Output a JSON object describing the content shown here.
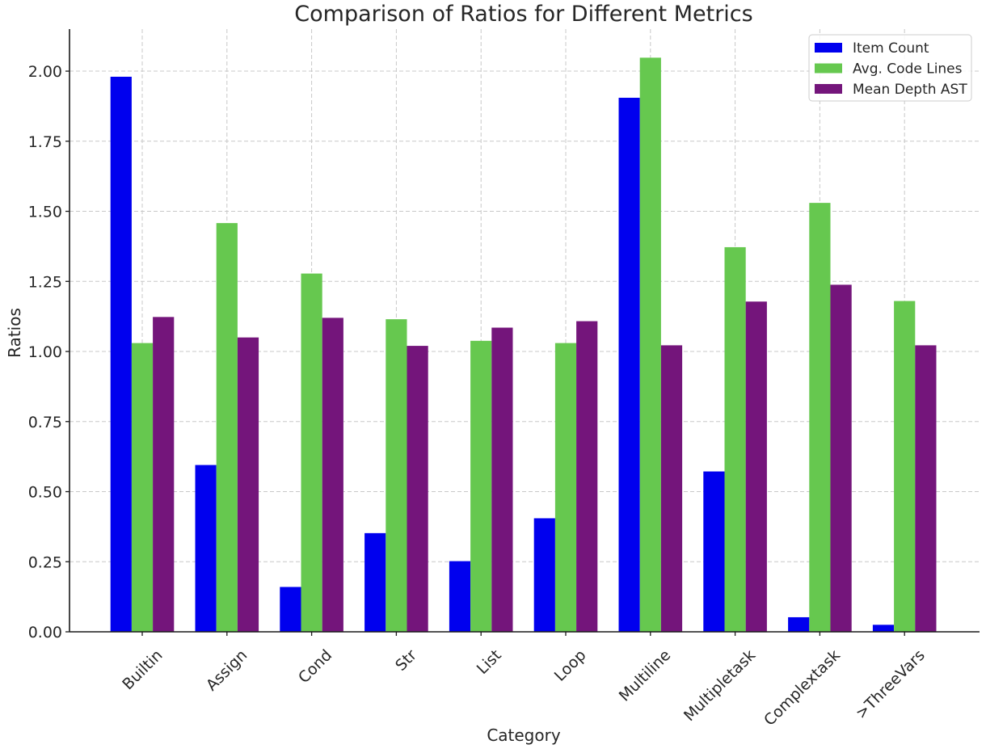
{
  "chart_data": {
    "type": "bar",
    "title": "Comparison of Ratios for Different Metrics",
    "xlabel": "Category",
    "ylabel": "Ratios",
    "ylim": [
      0,
      2.15
    ],
    "yticks": [
      0,
      0.25,
      0.5,
      0.75,
      1.0,
      1.25,
      1.5,
      1.75,
      2.0
    ],
    "ytick_labels": [
      "0.00",
      "0.25",
      "0.50",
      "0.75",
      "1.00",
      "1.25",
      "1.50",
      "1.75",
      "2.00"
    ],
    "grid": true,
    "legend_position": "top-right",
    "categories": [
      "Builtin",
      "Assign",
      "Cond",
      "Str",
      "List",
      "Loop",
      "Multiline",
      "Multipletask",
      "Complextask",
      ">ThreeVars"
    ],
    "series": [
      {
        "name": "Item Count",
        "color": "#0000ee",
        "values": [
          1.98,
          0.595,
          0.16,
          0.352,
          0.252,
          0.405,
          1.905,
          0.572,
          0.052,
          0.025
        ]
      },
      {
        "name": "Avg. Code Lines",
        "color": "#66c84f",
        "values": [
          1.03,
          1.458,
          1.278,
          1.115,
          1.038,
          1.03,
          2.048,
          1.372,
          1.53,
          1.18
        ]
      },
      {
        "name": "Mean Depth AST",
        "color": "#74157b",
        "values": [
          1.123,
          1.05,
          1.12,
          1.02,
          1.085,
          1.108,
          1.022,
          1.178,
          1.238,
          1.022
        ]
      }
    ]
  }
}
